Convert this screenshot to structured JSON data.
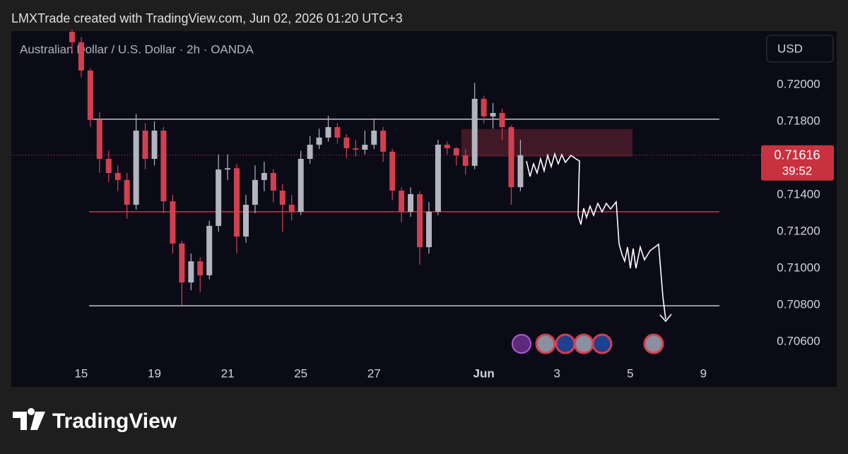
{
  "header": "LMXTrade created with TradingView.com, Jun 02, 2026 01:20 UTC+3",
  "brand": "TradingView",
  "chart_data": {
    "type": "candlestick",
    "subtitle": "Australian Dollar / U.S. Dollar · 2h · OANDA",
    "currency": "USD",
    "up_color": "#b2b5be",
    "down_color": "#d2404f",
    "x": [
      -0.25,
      0,
      0.25,
      0.5,
      0.75,
      1,
      1.25,
      1.5,
      1.75,
      2,
      2.25,
      2.5,
      2.75,
      3,
      3.25,
      3.5,
      3.75,
      4,
      4.25,
      4.5,
      4.75,
      5,
      5.25,
      5.5,
      5.75,
      6,
      6.25,
      6.5,
      6.75,
      7,
      7.25,
      7.5,
      7.75,
      8,
      8.25,
      8.5,
      8.75,
      9,
      9.25,
      9.5,
      9.75,
      10,
      10.25,
      10.5,
      10.75,
      11,
      11.25,
      11.5,
      11.75,
      12
    ],
    "open": [
      0.72288,
      0.72231,
      0.72077,
      0.71808,
      0.71596,
      0.71519,
      0.71481,
      0.71346,
      0.7175,
      0.71596,
      0.7175,
      0.71365,
      0.71135,
      0.70923,
      0.71038,
      0.70962,
      0.71231,
      0.71538,
      0.71545,
      0.71173,
      0.71346,
      0.71481,
      0.71519,
      0.71423,
      0.71346,
      0.71308,
      0.71596,
      0.71673,
      0.71712,
      0.71769,
      0.71712,
      0.71654,
      0.71646,
      0.71673,
      0.7175,
      0.71635,
      0.71423,
      0.71308,
      0.71404,
      0.71115,
      0.71308,
      0.71673,
      0.71654,
      0.71615,
      0.71558,
      0.71923,
      0.71827,
      0.71846,
      0.71769,
      0.71442
    ],
    "high": [
      0.723,
      0.7226,
      0.7209,
      0.7185,
      0.7164,
      0.7156,
      0.7152,
      0.7184,
      0.7179,
      0.718,
      0.7177,
      0.714,
      0.7115,
      0.7108,
      0.7106,
      0.7126,
      0.7162,
      0.7162,
      0.7157,
      0.714,
      0.7156,
      0.7158,
      0.7154,
      0.7146,
      0.714,
      0.7164,
      0.7172,
      0.7176,
      0.7183,
      0.7179,
      0.7173,
      0.717,
      0.7175,
      0.7181,
      0.7177,
      0.7165,
      0.7144,
      0.7144,
      0.7142,
      0.7136,
      0.717,
      0.7169,
      0.7166,
      0.7165,
      0.7201,
      0.7194,
      0.719,
      0.7187,
      0.7178,
      0.717
    ],
    "low": [
      0.7218,
      0.7204,
      0.7177,
      0.7152,
      0.7147,
      0.7142,
      0.7127,
      0.7132,
      0.7154,
      0.7156,
      0.713,
      0.7108,
      0.708,
      0.7088,
      0.7087,
      0.7094,
      0.712,
      0.7148,
      0.7108,
      0.7114,
      0.713,
      0.7142,
      0.7136,
      0.712,
      0.7126,
      0.7129,
      0.7157,
      0.7165,
      0.7169,
      0.7168,
      0.716,
      0.7161,
      0.7162,
      0.7165,
      0.7158,
      0.7137,
      0.7125,
      0.7128,
      0.7102,
      0.7108,
      0.7129,
      0.7162,
      0.7156,
      0.7151,
      0.7154,
      0.7179,
      0.7176,
      0.717,
      0.71346,
      0.7142
    ],
    "close": [
      0.72231,
      0.72077,
      0.71808,
      0.71596,
      0.71519,
      0.71481,
      0.71346,
      0.7175,
      0.71596,
      0.7175,
      0.71365,
      0.71135,
      0.70923,
      0.71038,
      0.70962,
      0.71231,
      0.71538,
      0.71545,
      0.71173,
      0.71346,
      0.71481,
      0.71519,
      0.71423,
      0.71346,
      0.71308,
      0.71596,
      0.71673,
      0.71712,
      0.71769,
      0.71712,
      0.71654,
      0.71646,
      0.71673,
      0.7175,
      0.71635,
      0.71423,
      0.71308,
      0.71404,
      0.71115,
      0.71308,
      0.71673,
      0.71654,
      0.71615,
      0.71558,
      0.71923,
      0.71827,
      0.71846,
      0.71769,
      0.71442,
      0.71616
    ],
    "levels": [
      0.71812,
      0.71308,
      0.70796
    ],
    "level_colors": [
      "#d1d4dc",
      "#d2404f",
      "#d1d4dc"
    ],
    "zone": [
      0.71608,
      0.71758
    ],
    "last_price": 0.71616,
    "countdown": "39:52",
    "xlim": [
      -1.91,
      18.44
    ],
    "ylim": [
      0.70354,
      0.72292
    ],
    "xticks": [
      {
        "value": 0,
        "label": "15"
      },
      {
        "value": 2,
        "label": "19"
      },
      {
        "value": 4,
        "label": "21"
      },
      {
        "value": 6,
        "label": "25"
      },
      {
        "value": 8,
        "label": "27"
      },
      {
        "value": 11,
        "label": "Jun"
      },
      {
        "value": 13,
        "label": "3"
      },
      {
        "value": 15,
        "label": "5"
      },
      {
        "value": 17,
        "label": "9"
      }
    ],
    "yticks": [
      {
        "value": 0.706,
        "label": "0.70600"
      },
      {
        "value": 0.708,
        "label": "0.70800"
      },
      {
        "value": 0.71,
        "label": "0.71000"
      },
      {
        "value": 0.712,
        "label": "0.71200"
      },
      {
        "value": 0.714,
        "label": "0.71400"
      },
      {
        "value": 0.718,
        "label": "0.71800"
      },
      {
        "value": 0.72,
        "label": "0.72000"
      }
    ]
  }
}
